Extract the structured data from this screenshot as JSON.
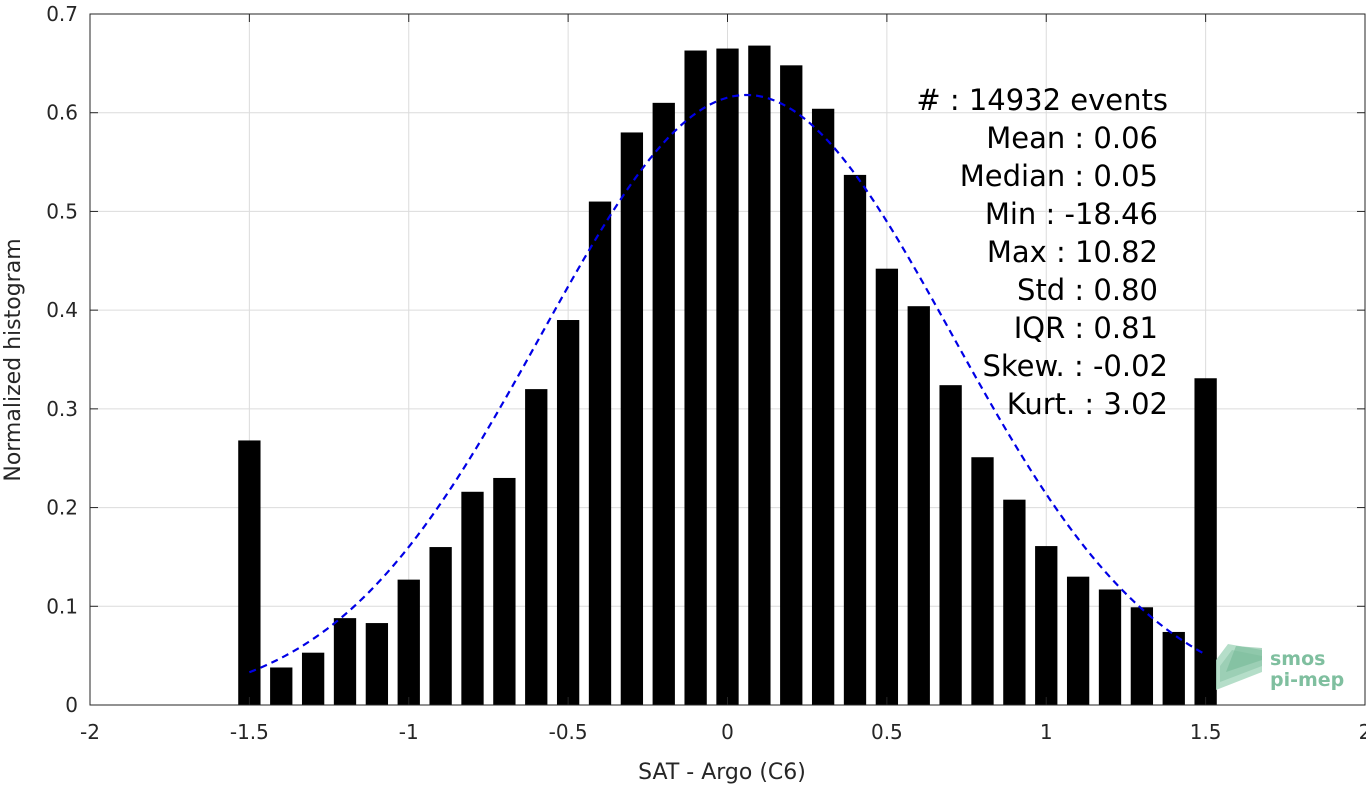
{
  "chart_data": {
    "type": "bar",
    "title": "",
    "xlabel": "SAT - Argo (C6)",
    "ylabel": "Normalized histogram",
    "xlim": [
      -2,
      2
    ],
    "ylim": [
      0,
      0.7
    ],
    "x_ticks": [
      -2,
      -1.5,
      -1,
      -0.5,
      0,
      0.5,
      1,
      1.5,
      2
    ],
    "x_tick_labels": [
      "-2",
      "-1.5",
      "-1",
      "-0.5",
      "0",
      "0.5",
      "1",
      "1.5",
      "2"
    ],
    "y_ticks": [
      0,
      0.1,
      0.2,
      0.3,
      0.4,
      0.5,
      0.6,
      0.7
    ],
    "y_tick_labels": [
      "0",
      "0.1",
      "0.2",
      "0.3",
      "0.4",
      "0.5",
      "0.6",
      "0.7"
    ],
    "grid": true,
    "bar_color": "#000000",
    "bar_width": 0.07,
    "bins": [
      -1.5,
      -1.4,
      -1.3,
      -1.2,
      -1.1,
      -1.0,
      -0.9,
      -0.8,
      -0.7,
      -0.6,
      -0.5,
      -0.4,
      -0.3,
      -0.2,
      -0.1,
      0.0,
      0.1,
      0.2,
      0.3,
      0.4,
      0.5,
      0.6,
      0.7,
      0.8,
      0.9,
      1.0,
      1.1,
      1.2,
      1.3,
      1.4,
      1.5
    ],
    "values": [
      0.268,
      0.038,
      0.053,
      0.088,
      0.083,
      0.127,
      0.16,
      0.216,
      0.23,
      0.32,
      0.39,
      0.51,
      0.58,
      0.61,
      0.663,
      0.665,
      0.668,
      0.648,
      0.604,
      0.537,
      0.442,
      0.404,
      0.324,
      0.251,
      0.208,
      0.161,
      0.13,
      0.117,
      0.099,
      0.074,
      0.331
    ],
    "fit_curve": {
      "type": "gaussian",
      "style": "dashed",
      "color": "#0000e6",
      "mean": 0.06,
      "std": 0.645,
      "peak": 0.618,
      "x_range": [
        -1.5,
        1.5
      ]
    },
    "annotations": [
      "#  : 14932 events",
      "Mean : 0.06",
      "Median : 0.05",
      "Min : -18.46",
      "Max : 10.82",
      "Std : 0.80",
      "IQR : 0.81",
      "Skew. : -0.02",
      "Kurt. : 3.02"
    ]
  },
  "logo": {
    "line1": "smos",
    "line2": "pi-mep",
    "color": "#7fbf9f"
  }
}
